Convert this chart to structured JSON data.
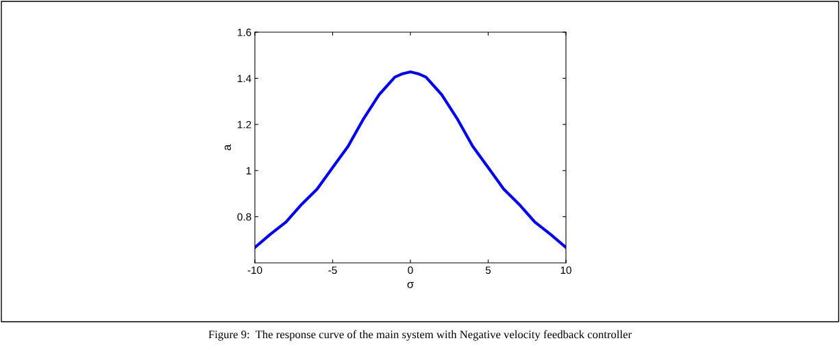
{
  "chart_data": {
    "type": "line",
    "xlabel": "σ",
    "ylabel": "a",
    "x": [
      -10,
      -9,
      -8,
      -7,
      -6,
      -5,
      -4,
      -3,
      -2,
      -1,
      -0.5,
      0,
      0.5,
      1,
      2,
      3,
      4,
      5,
      6,
      7,
      8,
      9,
      10
    ],
    "series": [
      {
        "color": "#0000ff",
        "values": [
          0.667,
          0.724,
          0.777,
          0.853,
          0.92,
          1.013,
          1.106,
          1.226,
          1.33,
          1.405,
          1.42,
          1.428,
          1.42,
          1.405,
          1.33,
          1.226,
          1.106,
          1.013,
          0.92,
          0.853,
          0.777,
          0.724,
          0.667
        ]
      }
    ],
    "xlim": [
      -10,
      10
    ],
    "xticks": [
      -10,
      -5,
      0,
      5,
      10
    ],
    "ylim": [
      0.6,
      1.6
    ],
    "yticks": [
      0.8,
      1,
      1.2,
      1.4,
      1.6
    ],
    "grid": false,
    "marker": "none",
    "line_style": "solid",
    "annotations": [
      "Figure 9:  The response curve of the main system with Negative velocity feedback controller"
    ]
  }
}
